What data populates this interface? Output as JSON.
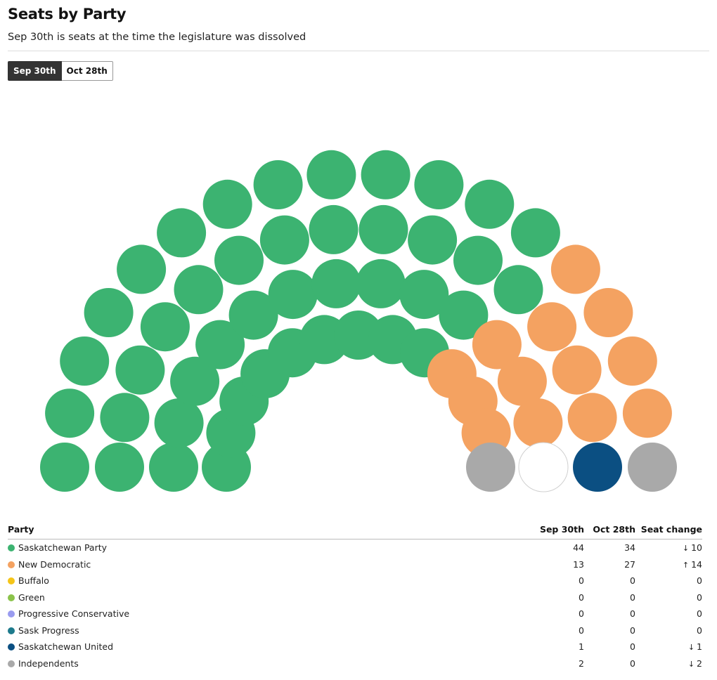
{
  "header": {
    "title": "Seats by Party",
    "subtitle": "Sep 30th is seats at the time the legislature was dissolved"
  },
  "toggle": {
    "options": [
      "Sep 30th",
      "Oct 28th"
    ],
    "selected": "Sep 30th"
  },
  "table": {
    "columns": [
      "Party",
      "Sep 30th",
      "Oct 28th",
      "Seat change"
    ]
  },
  "chart_data": {
    "type": "parliament",
    "total_seats": 61,
    "snapshot_shown": "Sep 30th",
    "parties": [
      {
        "name": "Saskatchewan Party",
        "color": "#3cb371",
        "sep30": 44,
        "oct28": 34,
        "change": "10",
        "direction": "down"
      },
      {
        "name": "New Democratic",
        "color": "#f4a261",
        "sep30": 13,
        "oct28": 27,
        "change": "14",
        "direction": "up"
      },
      {
        "name": "Buffalo",
        "color": "#f5c518",
        "sep30": 0,
        "oct28": 0,
        "change": "0",
        "direction": "none"
      },
      {
        "name": "Green",
        "color": "#8bc34a",
        "sep30": 0,
        "oct28": 0,
        "change": "0",
        "direction": "none"
      },
      {
        "name": "Progressive Conservative",
        "color": "#9a9cf0",
        "sep30": 0,
        "oct28": 0,
        "change": "0",
        "direction": "none"
      },
      {
        "name": "Sask Progress",
        "color": "#1d7a8c",
        "sep30": 0,
        "oct28": 0,
        "change": "0",
        "direction": "none"
      },
      {
        "name": "Saskatchewan United",
        "color": "#0b4f82",
        "sep30": 1,
        "oct28": 0,
        "change": "1",
        "direction": "down"
      },
      {
        "name": "Independents",
        "color": "#a9a9a9",
        "sep30": 2,
        "oct28": 0,
        "change": "2",
        "direction": "down"
      }
    ],
    "vacant_seats": 1
  }
}
